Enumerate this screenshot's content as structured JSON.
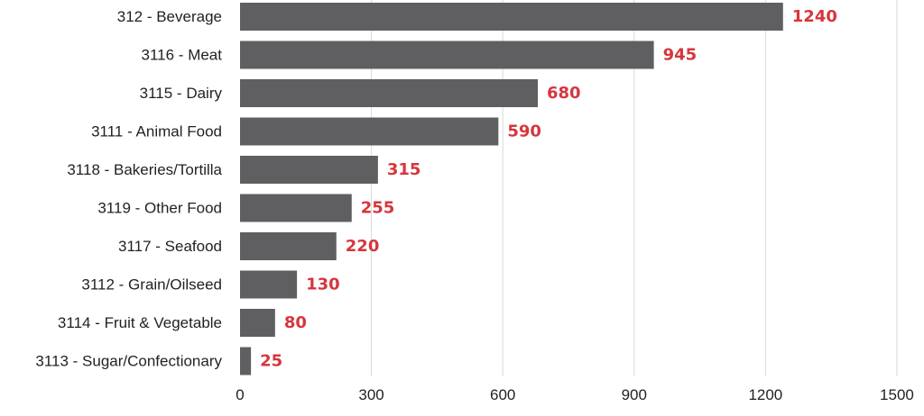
{
  "chart_data": {
    "type": "bar",
    "orientation": "horizontal",
    "categories": [
      "312 - Beverage",
      "3116 - Meat",
      "3115 - Dairy",
      "3111 - Animal Food",
      "3118 - Bakeries/Tortilla",
      "3119 - Other Food",
      "3117 - Seafood",
      "3112 - Grain/Oilseed",
      "3114 - Fruit & Vegetable",
      "3113 - Sugar/Confectionary"
    ],
    "values": [
      1240,
      945,
      680,
      590,
      315,
      255,
      220,
      130,
      80,
      25
    ],
    "data_labels": [
      "1240",
      "945",
      "680",
      "590",
      "315",
      "255",
      "220",
      "130",
      "80",
      "25"
    ],
    "title": "",
    "xlabel": "",
    "ylabel": "",
    "xlim": [
      0,
      1500
    ],
    "x_ticks": [
      0,
      300,
      600,
      900,
      1200,
      1500
    ],
    "x_tick_labels": [
      "0",
      "300",
      "600",
      "900",
      "1200",
      "1500"
    ],
    "grid": "vertical",
    "legend": "none",
    "colors": {
      "bar": "#5f5f61",
      "data_label": "#d6363d",
      "gridline": "#d9d9d9",
      "text": "#231f20"
    }
  }
}
